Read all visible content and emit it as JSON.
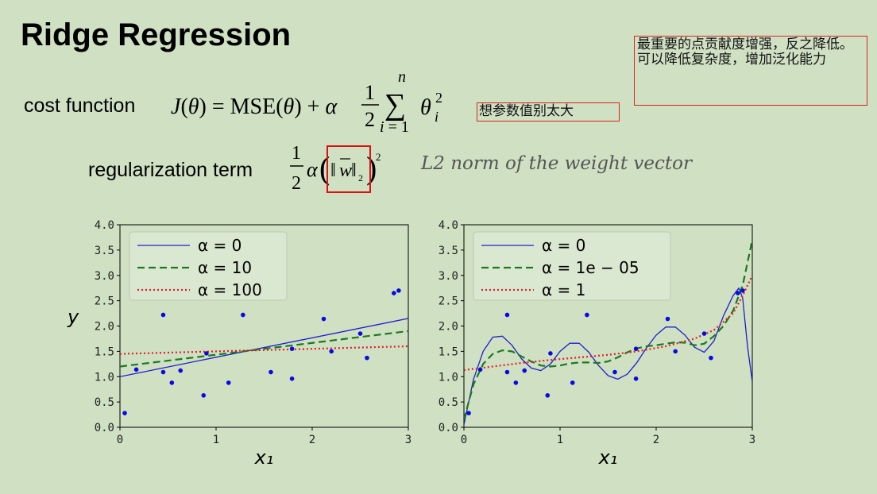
{
  "slide": {
    "title": "Ridge Regression",
    "note_main": "最重要的点贡献度增强，反之降低。可以降低复杂度，增加泛化能力",
    "note_small": "想参数值别太大",
    "cost_label": "cost function",
    "reg_label": "regularization term",
    "l2_note": "L2 norm of the weight vector"
  },
  "colors": {
    "blue": "#1f1fcc",
    "green": "#1b7a1b",
    "red": "#e0202a",
    "points": "#0a0ae0",
    "note_border": "#d22222"
  },
  "chart_data": [
    {
      "type": "line",
      "title": "",
      "xlabel": "x₁",
      "ylabel": "y",
      "xlim": [
        0,
        3
      ],
      "ylim": [
        0,
        4
      ],
      "xticks": [
        "0",
        "1",
        "2",
        "3"
      ],
      "yticks": [
        "0.0",
        "0.5",
        "1.0",
        "1.5",
        "2.0",
        "2.5",
        "3.0",
        "3.5",
        "4.0"
      ],
      "legend": "top-left",
      "scatter": {
        "x": [
          0.05,
          0.17,
          0.45,
          0.45,
          0.54,
          0.63,
          0.87,
          0.9,
          1.13,
          1.28,
          1.57,
          1.79,
          1.79,
          2.12,
          2.2,
          2.5,
          2.57,
          2.85,
          2.9
        ],
        "y": [
          0.28,
          1.14,
          2.22,
          1.09,
          0.88,
          1.12,
          0.63,
          1.46,
          0.88,
          2.22,
          1.09,
          0.96,
          1.55,
          2.14,
          1.5,
          1.85,
          1.37,
          2.65,
          2.7
        ]
      },
      "series": [
        {
          "name": "α = 0",
          "style": "solid",
          "color": "blue",
          "x": [
            0,
            3
          ],
          "y": [
            1.0,
            2.15
          ]
        },
        {
          "name": "α = 10",
          "style": "dashed",
          "color": "green",
          "x": [
            0,
            3
          ],
          "y": [
            1.2,
            1.9
          ]
        },
        {
          "name": "α = 100",
          "style": "dotted",
          "color": "red",
          "x": [
            0,
            3
          ],
          "y": [
            1.45,
            1.6
          ]
        }
      ]
    },
    {
      "type": "line",
      "title": "",
      "xlabel": "x₁",
      "ylabel": "",
      "xlim": [
        0,
        3
      ],
      "ylim": [
        0,
        4
      ],
      "xticks": [
        "0",
        "1",
        "2",
        "3"
      ],
      "yticks": [
        "0.0",
        "0.5",
        "1.0",
        "1.5",
        "2.0",
        "2.5",
        "3.0",
        "3.5",
        "4.0"
      ],
      "legend": "top-left",
      "scatter": {
        "x": [
          0.05,
          0.17,
          0.45,
          0.45,
          0.54,
          0.63,
          0.87,
          0.9,
          1.13,
          1.28,
          1.57,
          1.79,
          1.79,
          2.12,
          2.2,
          2.5,
          2.57,
          2.85,
          2.9
        ],
        "y": [
          0.28,
          1.14,
          2.22,
          1.09,
          0.88,
          1.12,
          0.63,
          1.46,
          0.88,
          2.22,
          1.09,
          0.96,
          1.55,
          2.14,
          1.5,
          1.85,
          1.37,
          2.65,
          2.7
        ]
      },
      "series": [
        {
          "name": "α = 0",
          "style": "solid",
          "color": "blue",
          "x": [
            0,
            0.05,
            0.1,
            0.2,
            0.3,
            0.4,
            0.5,
            0.6,
            0.7,
            0.8,
            0.9,
            1.0,
            1.1,
            1.2,
            1.3,
            1.4,
            1.5,
            1.6,
            1.7,
            1.8,
            1.9,
            2.0,
            2.1,
            2.2,
            2.3,
            2.4,
            2.5,
            2.6,
            2.7,
            2.8,
            2.86,
            2.9,
            2.95,
            3.0
          ],
          "y": [
            0.05,
            0.5,
            0.95,
            1.5,
            1.78,
            1.8,
            1.62,
            1.35,
            1.17,
            1.12,
            1.25,
            1.5,
            1.66,
            1.66,
            1.48,
            1.22,
            1.02,
            0.95,
            1.05,
            1.28,
            1.57,
            1.82,
            1.98,
            1.98,
            1.82,
            1.58,
            1.48,
            1.7,
            2.2,
            2.6,
            2.75,
            2.55,
            1.6,
            0.9
          ]
        },
        {
          "name": "α = 1e − 05",
          "style": "dashed",
          "color": "green",
          "x": [
            0,
            0.05,
            0.1,
            0.2,
            0.3,
            0.4,
            0.5,
            0.6,
            0.7,
            0.8,
            0.9,
            1.0,
            1.1,
            1.2,
            1.3,
            1.4,
            1.5,
            1.6,
            1.7,
            1.8,
            1.9,
            2.0,
            2.1,
            2.2,
            2.3,
            2.4,
            2.5,
            2.6,
            2.7,
            2.8,
            2.9,
            3.0
          ],
          "y": [
            0.15,
            0.5,
            0.85,
            1.25,
            1.45,
            1.52,
            1.5,
            1.4,
            1.3,
            1.22,
            1.2,
            1.22,
            1.26,
            1.28,
            1.28,
            1.27,
            1.3,
            1.38,
            1.48,
            1.56,
            1.6,
            1.62,
            1.65,
            1.68,
            1.67,
            1.62,
            1.65,
            1.8,
            2.0,
            2.3,
            2.8,
            3.7
          ]
        },
        {
          "name": "α = 1",
          "style": "dotted",
          "color": "red",
          "x": [
            0,
            0.3,
            0.6,
            0.9,
            1.2,
            1.5,
            1.8,
            2.1,
            2.4,
            2.6,
            2.8,
            2.9,
            3.0
          ],
          "y": [
            1.13,
            1.2,
            1.27,
            1.33,
            1.38,
            1.43,
            1.5,
            1.6,
            1.75,
            1.92,
            2.25,
            2.6,
            3.0
          ]
        }
      ]
    }
  ]
}
